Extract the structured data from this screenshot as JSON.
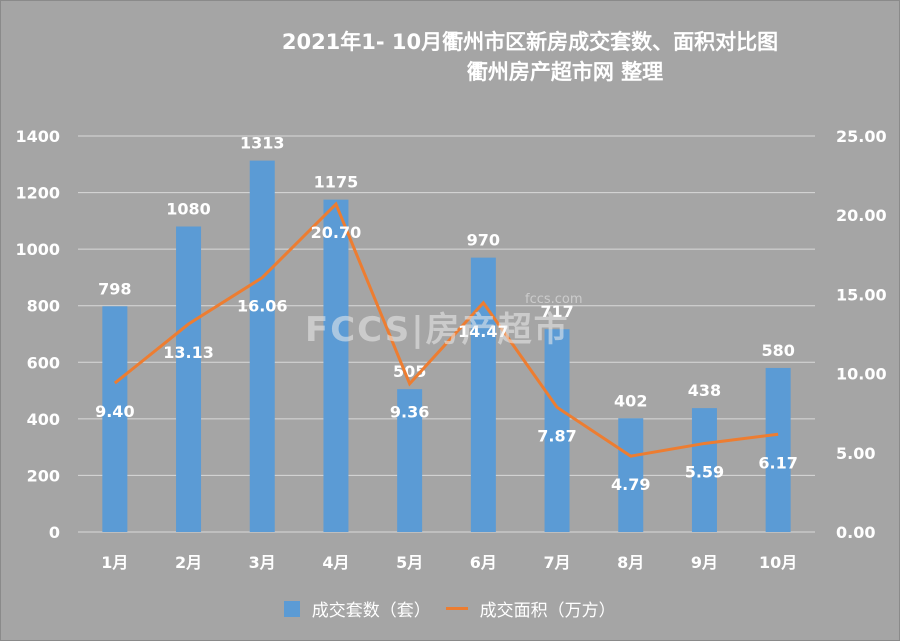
{
  "chart_data": {
    "type": "bar+line",
    "title": "2021年1- 10月衢州市区新房成交套数、面积对比图",
    "subtitle": "衢州房产超市网 整理",
    "categories": [
      "1月",
      "2月",
      "3月",
      "4月",
      "5月",
      "6月",
      "7月",
      "8月",
      "9月",
      "10月"
    ],
    "series": [
      {
        "name": "成交套数（套）",
        "type": "bar",
        "axis": "left",
        "color": "#5b9bd5",
        "values": [
          798,
          1080,
          1313,
          1175,
          505,
          970,
          717,
          402,
          438,
          580
        ]
      },
      {
        "name": "成交面积（万方）",
        "type": "line",
        "axis": "right",
        "color": "#ed7d31",
        "values": [
          9.4,
          13.13,
          16.06,
          20.7,
          9.36,
          14.47,
          7.87,
          4.79,
          5.59,
          6.17
        ]
      }
    ],
    "left_axis": {
      "ticks": [
        "0",
        "200",
        "400",
        "600",
        "800",
        "1000",
        "1200",
        "1400"
      ],
      "range": [
        0,
        1400
      ]
    },
    "right_axis": {
      "ticks": [
        "0.00",
        "5.00",
        "10.00",
        "15.00",
        "20.00",
        "25.00"
      ],
      "range": [
        0,
        25
      ]
    },
    "grid": true,
    "legend_position": "bottom"
  },
  "labels": {
    "title": "2021年1- 10月衢州市区新房成交套数、面积对比图",
    "subtitle": "衢州房产超市网 整理",
    "legend_bar": "成交套数（套）",
    "legend_line": "成交面积（万方）",
    "watermark": "FCCS|房产超市",
    "watermark_small": "fccs.com"
  }
}
